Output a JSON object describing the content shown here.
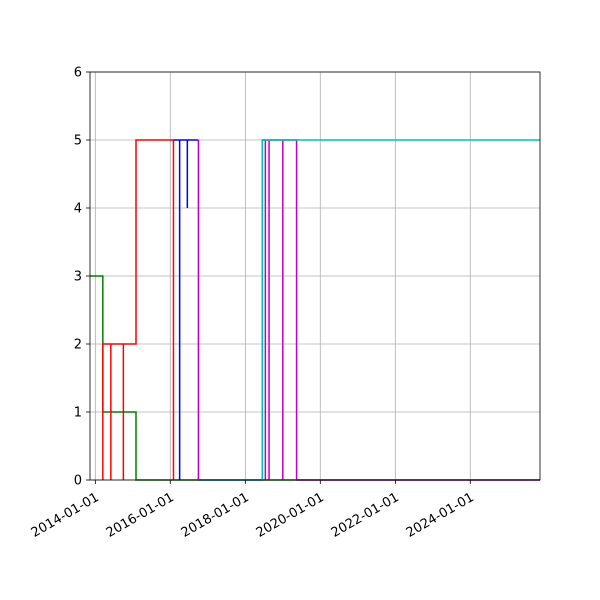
{
  "chart_data": {
    "type": "line",
    "title": "",
    "xlabel": "",
    "ylabel": "",
    "x_axis_kind": "date",
    "xlim": [
      "2013-11-10",
      "2025-11-10"
    ],
    "ylim": [
      0,
      6
    ],
    "grid": true,
    "legend": "none",
    "x_ticks": [
      "2014-01-01",
      "2016-01-01",
      "2018-01-01",
      "2020-01-01",
      "2022-01-01",
      "2024-01-01"
    ],
    "y_ticks": [
      0,
      1,
      2,
      3,
      4,
      5,
      6
    ],
    "series": [
      {
        "color": "#008000",
        "points": [
          [
            "2013-11-10",
            3
          ],
          [
            "2014-03-15",
            3
          ],
          [
            "2014-03-15",
            1
          ],
          [
            "2015-02-01",
            1
          ],
          [
            "2015-02-01",
            0
          ],
          [
            "2025-11-10",
            0
          ]
        ]
      },
      {
        "color": "#ff0000",
        "points": [
          [
            "2014-03-15",
            0
          ],
          [
            "2014-03-15",
            2
          ],
          [
            "2014-06-01",
            2
          ],
          [
            "2014-06-01",
            0
          ],
          [
            "2014-06-01",
            2
          ],
          [
            "2014-10-01",
            2
          ],
          [
            "2014-10-01",
            0
          ],
          [
            "2014-10-01",
            2
          ],
          [
            "2015-02-01",
            2
          ],
          [
            "2015-02-01",
            5
          ],
          [
            "2016-02-01",
            5
          ],
          [
            "2016-02-01",
            0
          ]
        ]
      },
      {
        "color": "#0000ff",
        "points": [
          [
            "2016-02-01",
            5
          ],
          [
            "2016-04-01",
            5
          ],
          [
            "2016-04-01",
            0
          ],
          [
            "2016-04-01",
            5
          ],
          [
            "2016-06-15",
            5
          ],
          [
            "2016-06-15",
            4
          ],
          [
            "2016-06-15",
            5
          ],
          [
            "2016-10-01",
            5
          ]
        ]
      },
      {
        "color": "#bf00bf",
        "points": [
          [
            "2016-10-01",
            5
          ],
          [
            "2016-10-01",
            0
          ],
          [
            "2018-06-15",
            0
          ],
          [
            "2018-06-15",
            5
          ],
          [
            "2018-07-15",
            5
          ],
          [
            "2018-07-15",
            0
          ],
          [
            "2018-07-15",
            5
          ],
          [
            "2018-08-20",
            5
          ],
          [
            "2018-08-20",
            0
          ],
          [
            "2018-08-20",
            5
          ],
          [
            "2019-01-01",
            5
          ],
          [
            "2019-01-01",
            0
          ],
          [
            "2019-01-01",
            5
          ],
          [
            "2019-05-15",
            5
          ],
          [
            "2019-05-15",
            0
          ],
          [
            "2025-11-10",
            0
          ]
        ]
      },
      {
        "color": "#00bfbf",
        "points": [
          [
            "2016-10-01",
            0
          ],
          [
            "2018-06-15",
            0
          ],
          [
            "2018-06-15",
            5
          ],
          [
            "2019-05-15",
            5
          ],
          [
            "2025-11-10",
            5
          ]
        ]
      }
    ]
  }
}
